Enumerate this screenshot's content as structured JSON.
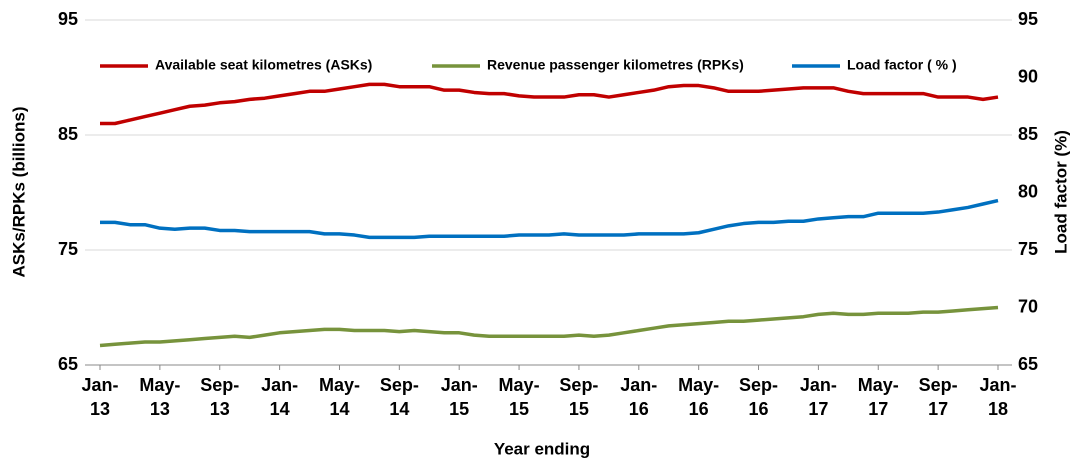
{
  "chart_data": {
    "type": "line",
    "xlabel": "Year ending",
    "ylabel": "ASKs/RPKs (billions)",
    "y2label": "Load factor (%)",
    "categories": [
      "Jan-13",
      null,
      null,
      null,
      "May-13",
      null,
      null,
      null,
      "Sep-13",
      null,
      null,
      null,
      "Jan-14",
      null,
      null,
      null,
      "May-14",
      null,
      null,
      null,
      "Sep-14",
      null,
      null,
      null,
      "Jan-15",
      null,
      null,
      null,
      "May-15",
      null,
      null,
      null,
      "Sep-15",
      null,
      null,
      null,
      "Jan-16",
      null,
      null,
      null,
      "May-16",
      null,
      null,
      null,
      "Sep-16",
      null,
      null,
      null,
      "Jan-17",
      null,
      null,
      null,
      "May-17",
      null,
      null,
      null,
      "Sep-17",
      null,
      null,
      null,
      "Jan-18"
    ],
    "ylim": [
      65,
      95
    ],
    "yticks": [
      65,
      75,
      85,
      95
    ],
    "y2lim": [
      65,
      95
    ],
    "y2ticks": [
      65,
      70,
      75,
      80,
      85,
      90,
      95
    ],
    "grid": true,
    "legend": "top",
    "series": [
      {
        "name": "Available seat kilometres (ASKs)",
        "color": "#c00000",
        "values": [
          86.0,
          86.0,
          86.3,
          86.6,
          86.9,
          87.2,
          87.5,
          87.6,
          87.8,
          87.9,
          88.1,
          88.2,
          88.4,
          88.6,
          88.8,
          88.8,
          89.0,
          89.2,
          89.4,
          89.4,
          89.2,
          89.2,
          89.2,
          88.9,
          88.9,
          88.7,
          88.6,
          88.6,
          88.4,
          88.3,
          88.3,
          88.3,
          88.5,
          88.5,
          88.3,
          88.5,
          88.7,
          88.9,
          89.2,
          89.3,
          89.3,
          89.1,
          88.8,
          88.8,
          88.8,
          88.9,
          89.0,
          89.1,
          89.1,
          89.1,
          88.8,
          88.6,
          88.6,
          88.6,
          88.6,
          88.6,
          88.3,
          88.3,
          88.3,
          88.1,
          88.3
        ]
      },
      {
        "name": "Revenue passenger kilometres (RPKs)",
        "color": "#77933c",
        "values": [
          66.7,
          66.8,
          66.9,
          67.0,
          67.0,
          67.1,
          67.2,
          67.3,
          67.4,
          67.5,
          67.4,
          67.6,
          67.8,
          67.9,
          68.0,
          68.1,
          68.1,
          68.0,
          68.0,
          68.0,
          67.9,
          68.0,
          67.9,
          67.8,
          67.8,
          67.6,
          67.5,
          67.5,
          67.5,
          67.5,
          67.5,
          67.5,
          67.6,
          67.5,
          67.6,
          67.8,
          68.0,
          68.2,
          68.4,
          68.5,
          68.6,
          68.7,
          68.8,
          68.8,
          68.9,
          69.0,
          69.1,
          69.2,
          69.4,
          69.5,
          69.4,
          69.4,
          69.5,
          69.5,
          69.5,
          69.6,
          69.6,
          69.7,
          69.8,
          69.9,
          70.0
        ]
      },
      {
        "name": "Load factor ( % )",
        "color": "#0070c0",
        "axis": "y2",
        "values": [
          77.4,
          77.4,
          77.2,
          77.2,
          76.9,
          76.8,
          76.9,
          76.9,
          76.7,
          76.7,
          76.6,
          76.6,
          76.6,
          76.6,
          76.6,
          76.4,
          76.4,
          76.3,
          76.1,
          76.1,
          76.1,
          76.1,
          76.2,
          76.2,
          76.2,
          76.2,
          76.2,
          76.2,
          76.3,
          76.3,
          76.3,
          76.4,
          76.3,
          76.3,
          76.3,
          76.3,
          76.4,
          76.4,
          76.4,
          76.4,
          76.5,
          76.8,
          77.1,
          77.3,
          77.4,
          77.4,
          77.5,
          77.5,
          77.7,
          77.8,
          77.9,
          77.9,
          78.2,
          78.2,
          78.2,
          78.2,
          78.3,
          78.5,
          78.7,
          79.0,
          79.3
        ]
      }
    ]
  }
}
